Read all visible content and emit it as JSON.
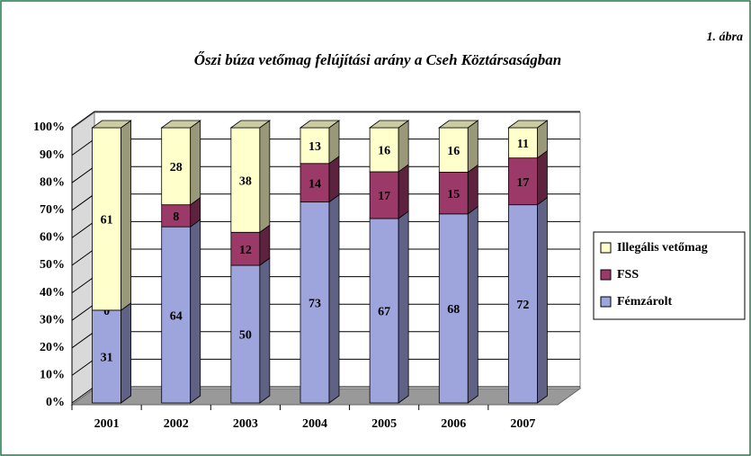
{
  "chart_data": {
    "type": "bar",
    "stacking": "percent",
    "title": "Őszi búza vetőmag felújítási arány a Cseh Köztársaságban",
    "annotation": "1. ábra",
    "categories": [
      "2001",
      "2002",
      "2003",
      "2004",
      "2005",
      "2006",
      "2007"
    ],
    "series": [
      {
        "name": "Fémzárolt",
        "color": "#9ea4dc",
        "values": [
          31,
          64,
          50,
          73,
          67,
          68,
          72
        ]
      },
      {
        "name": "FSS",
        "color": "#9b3a68",
        "values": [
          0,
          8,
          12,
          14,
          17,
          15,
          17
        ]
      },
      {
        "name": "Illegális vetőmag",
        "color": "#ffffcc",
        "values": [
          61,
          28,
          38,
          13,
          16,
          16,
          11
        ]
      }
    ],
    "ylim": [
      0,
      100
    ],
    "yticks": [
      {
        "value": 0,
        "label": "0%"
      },
      {
        "value": 10,
        "label": "10%"
      },
      {
        "value": 20,
        "label": "20%"
      },
      {
        "value": 30,
        "label": "30%"
      },
      {
        "value": 40,
        "label": "40%"
      },
      {
        "value": 50,
        "label": "50%"
      },
      {
        "value": 60,
        "label": "60%"
      },
      {
        "value": 70,
        "label": "70%"
      },
      {
        "value": 80,
        "label": "80%"
      },
      {
        "value": 90,
        "label": "90%"
      },
      {
        "value": 100,
        "label": "100%"
      }
    ],
    "grid": true,
    "legend": "right"
  }
}
